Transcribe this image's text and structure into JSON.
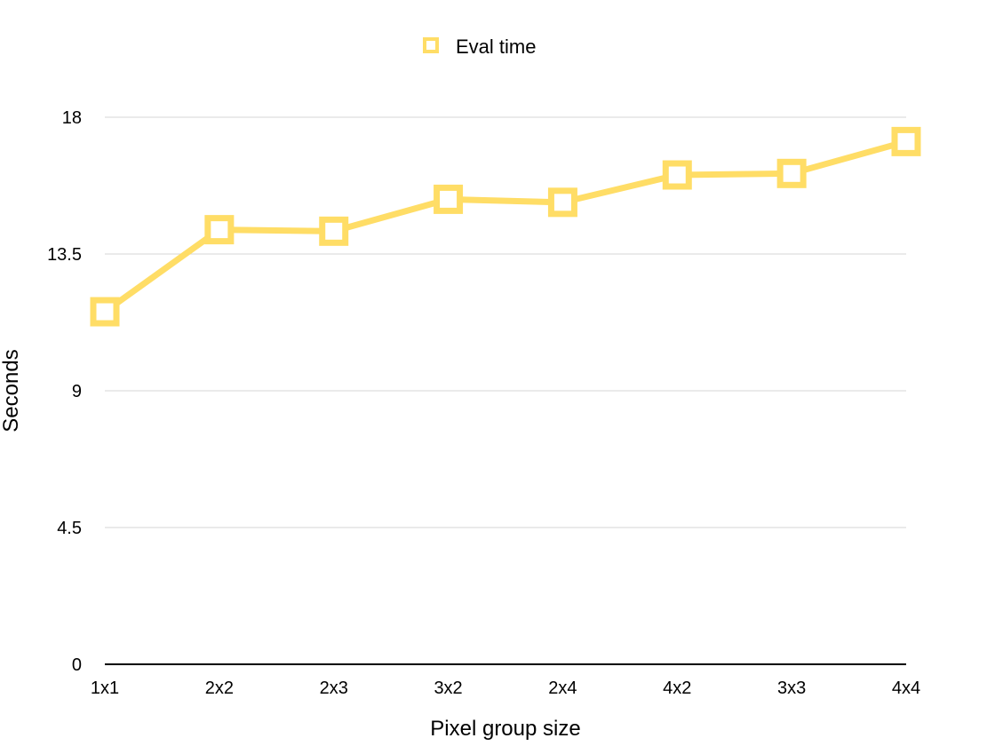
{
  "chart_data": {
    "type": "line",
    "categories": [
      "1x1",
      "2x2",
      "2x3",
      "3x2",
      "2x4",
      "4x2",
      "3x3",
      "4x4"
    ],
    "series": [
      {
        "name": "Eval time",
        "values": [
          11.6,
          14.3,
          14.25,
          15.3,
          15.2,
          16.1,
          16.15,
          17.2
        ],
        "color": "#FFDD66",
        "marker": "square-hollow"
      }
    ],
    "title": "",
    "xlabel": "Pixel group size",
    "ylabel": "Seconds",
    "ylim": [
      0,
      18
    ],
    "yticks": [
      "0",
      "4.5",
      "9",
      "13.5",
      "18"
    ],
    "grid": "horizontal",
    "legend_position": "top-center"
  }
}
